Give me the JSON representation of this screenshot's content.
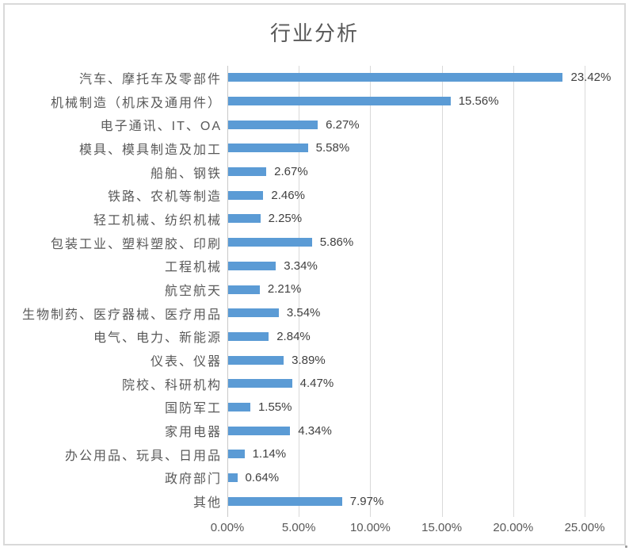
{
  "chart_data": {
    "type": "bar",
    "orientation": "horizontal",
    "title": "行业分析",
    "categories": [
      "汽车、摩托车及零部件",
      "机械制造（机床及通用件）",
      "电子通讯、IT、OA",
      "模具、模具制造及加工",
      "船舶、钢铁",
      "铁路、农机等制造",
      "轻工机械、纺织机械",
      "包装工业、塑料塑胶、印刷",
      "工程机械",
      "航空航天",
      "生物制药、医疗器械、医疗用品",
      "电气、电力、新能源",
      "仪表、仪器",
      "院校、科研机构",
      "国防军工",
      "家用电器",
      "办公用品、玩具、日用品",
      "政府部门",
      "其他"
    ],
    "values": [
      23.42,
      15.56,
      6.27,
      5.58,
      2.67,
      2.46,
      2.25,
      5.86,
      3.34,
      2.21,
      3.54,
      2.84,
      3.89,
      4.47,
      1.55,
      4.34,
      1.14,
      0.64,
      7.97
    ],
    "value_labels": [
      "23.42%",
      "15.56%",
      "6.27%",
      "5.58%",
      "2.67%",
      "2.46%",
      "2.25%",
      "5.86%",
      "3.34%",
      "2.21%",
      "3.54%",
      "2.84%",
      "3.89%",
      "4.47%",
      "1.55%",
      "4.34%",
      "1.14%",
      "0.64%",
      "7.97%"
    ],
    "x_ticks": [
      "0.00%",
      "5.00%",
      "10.00%",
      "15.00%",
      "20.00%",
      "25.00%"
    ],
    "xlim": [
      0,
      25
    ],
    "xlabel": "",
    "ylabel": "",
    "grid": true,
    "legend": false,
    "colors": {
      "bar": "#5B9BD5",
      "gridline": "#D9D9D9",
      "axis_text": "#595959",
      "value_text": "#404040",
      "title_text": "#595959",
      "border": "#D9D9D9"
    }
  }
}
